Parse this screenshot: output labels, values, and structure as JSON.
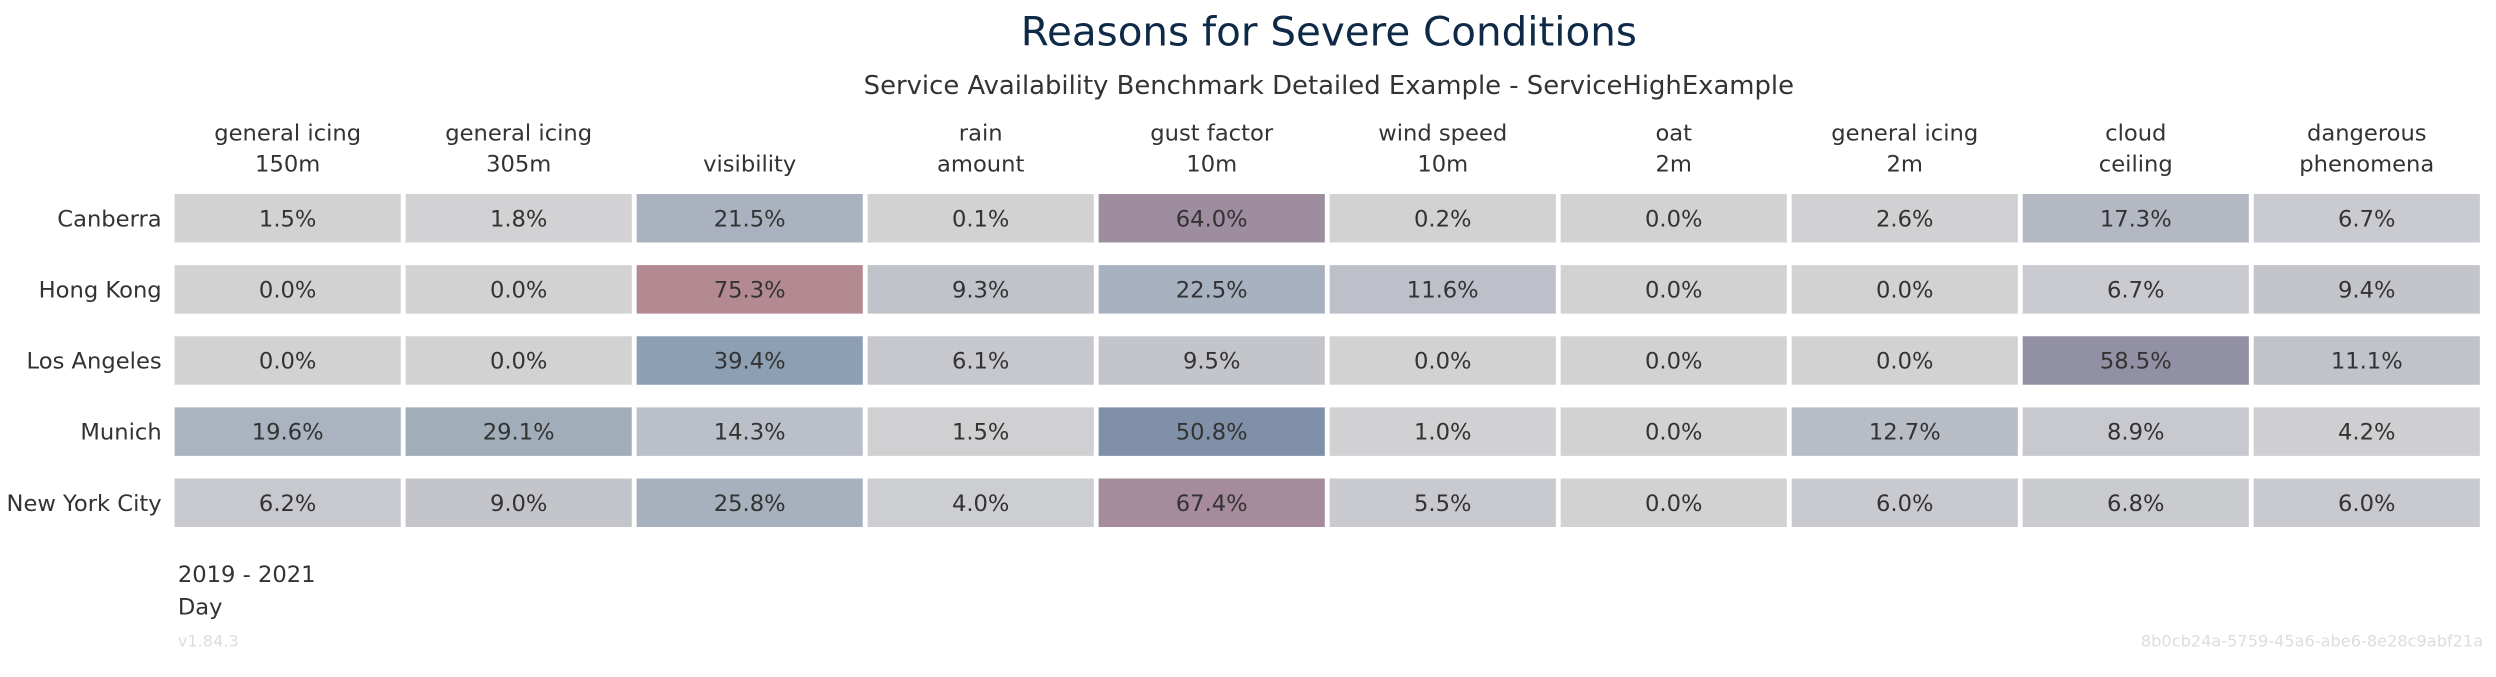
{
  "chart_data": {
    "type": "heatmap",
    "title": "Reasons for Severe Conditions",
    "subtitle": "Service Availability Benchmark Detailed Example - ServiceHighExample",
    "columns": [
      [
        "general icing",
        "150m"
      ],
      [
        "general icing",
        "305m"
      ],
      [
        "",
        "visibility"
      ],
      [
        "rain",
        "amount"
      ],
      [
        "gust factor",
        "10m"
      ],
      [
        "wind speed",
        "10m"
      ],
      [
        "oat",
        "2m"
      ],
      [
        "general icing",
        "2m"
      ],
      [
        "cloud",
        "ceiling"
      ],
      [
        "dangerous",
        "phenomena"
      ]
    ],
    "rows": [
      "Canberra",
      "Hong Kong",
      "Los Angeles",
      "Munich",
      "New York City"
    ],
    "values": [
      [
        1.5,
        1.8,
        21.5,
        0.1,
        64.0,
        0.2,
        0.0,
        2.6,
        17.3,
        6.7
      ],
      [
        0.0,
        0.0,
        75.3,
        9.3,
        22.5,
        11.6,
        0.0,
        0.0,
        6.7,
        9.4
      ],
      [
        0.0,
        0.0,
        39.4,
        6.1,
        9.5,
        0.0,
        0.0,
        0.0,
        58.5,
        11.1
      ],
      [
        19.6,
        29.1,
        14.3,
        1.5,
        50.8,
        1.0,
        0.0,
        12.7,
        8.9,
        4.2
      ],
      [
        6.2,
        9.0,
        25.8,
        4.0,
        67.4,
        5.5,
        0.0,
        6.0,
        6.8,
        6.0
      ]
    ],
    "labels": [
      [
        "1.5%",
        "1.8%",
        "21.5%",
        "0.1%",
        "64.0%",
        "0.2%",
        "0.0%",
        "2.6%",
        "17.3%",
        "6.7%"
      ],
      [
        "0.0%",
        "0.0%",
        "75.3%",
        "9.3%",
        "22.5%",
        "11.6%",
        "0.0%",
        "0.0%",
        "6.7%",
        "9.4%"
      ],
      [
        "0.0%",
        "0.0%",
        "39.4%",
        "6.1%",
        "9.5%",
        "0.0%",
        "0.0%",
        "0.0%",
        "58.5%",
        "11.1%"
      ],
      [
        "19.6%",
        "29.1%",
        "14.3%",
        "1.5%",
        "50.8%",
        "1.0%",
        "0.0%",
        "12.7%",
        "8.9%",
        "4.2%"
      ],
      [
        "6.2%",
        "9.0%",
        "25.8%",
        "4.0%",
        "67.4%",
        "5.5%",
        "0.0%",
        "6.0%",
        "6.8%",
        "6.0%"
      ]
    ],
    "cell_colors": [
      [
        "#d3d2d3",
        "#d2d1d3",
        "#abb2bf",
        "#d3d2d3",
        "#9e8c9f",
        "#d3d2d3",
        "#d3d2d3",
        "#d1d0d2",
        "#b4b8c2",
        "#cacbd0"
      ],
      [
        "#d3d2d3",
        "#d3d2d3",
        "#b38992",
        "#c1c3ca",
        "#a8b1bf",
        "#bdc0c9",
        "#d3d2d3",
        "#d3d2d3",
        "#cacbd0",
        "#c3c5cb"
      ],
      [
        "#d3d2d3",
        "#d3d2d3",
        "#8d9fb3",
        "#c6c8cd",
        "#c3c5cb",
        "#d3d2d3",
        "#d3d2d3",
        "#d3d2d3",
        "#9290a4",
        "#c1c3ca"
      ],
      [
        "#abb3c0",
        "#a2adba",
        "#bbbfc8",
        "#d0d0d2",
        "#8090a8",
        "#d1d1d3",
        "#d3d2d3",
        "#b8bcc5",
        "#c8c9cf",
        "#cfcfd2"
      ],
      [
        "#c7c9ce",
        "#c4c5cb",
        "#a7b0bd",
        "#cdced1",
        "#a68b9c",
        "#c9cacf",
        "#d3d2d3",
        "#c9cacf",
        "#c9cbcf",
        "#c9cacf"
      ]
    ],
    "footer": {
      "period": "2019 - 2021",
      "resolution": "Day",
      "version": "v1.84.3",
      "id": "8b0cb24a-5759-45a6-abe6-8e28c9abf21a"
    },
    "colors": {
      "title": "#0e2a47",
      "text": "#333333",
      "faint": "#dddddd"
    }
  }
}
